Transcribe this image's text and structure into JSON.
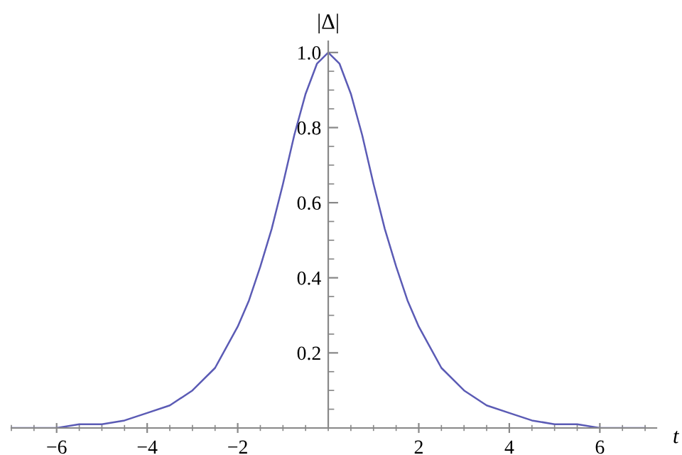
{
  "chart_data": {
    "type": "line",
    "xlabel": "t",
    "ylabel": "|Δ|",
    "xlim": [
      -7,
      7.25
    ],
    "ylim": [
      0,
      1.03
    ],
    "xticks": [
      {
        "value": -6,
        "label": "−6"
      },
      {
        "value": -4,
        "label": "−4"
      },
      {
        "value": -2,
        "label": "−2"
      },
      2,
      4,
      6
    ],
    "yticks": [
      0.2,
      0.4,
      0.6,
      0.8,
      {
        "value": 1.0,
        "label": "1.0"
      }
    ],
    "series": [
      {
        "color": "#5b5bb5",
        "x": [
          -7,
          -6.5,
          -6,
          -5.5,
          -5,
          -4.5,
          -4,
          -3.5,
          -3,
          -2.5,
          -2,
          -1.75,
          -1.5,
          -1.25,
          -1,
          -0.75,
          -0.5,
          -0.25,
          0,
          0.25,
          0.5,
          0.75,
          1,
          1.25,
          1.5,
          1.75,
          2,
          2.5,
          3,
          3.5,
          4,
          4.5,
          5,
          5.5,
          6,
          6.5,
          7
        ],
        "values": [
          0.0,
          0.0,
          0.0,
          0.01,
          0.01,
          0.02,
          0.04,
          0.06,
          0.1,
          0.16,
          0.27,
          0.34,
          0.43,
          0.53,
          0.65,
          0.78,
          0.89,
          0.97,
          1.0,
          0.97,
          0.89,
          0.78,
          0.65,
          0.53,
          0.43,
          0.34,
          0.27,
          0.16,
          0.1,
          0.06,
          0.04,
          0.02,
          0.01,
          0.01,
          0.0,
          0.0,
          0.0
        ]
      }
    ],
    "grid": false,
    "legend": false,
    "marker": "none",
    "line_style": "solid"
  }
}
